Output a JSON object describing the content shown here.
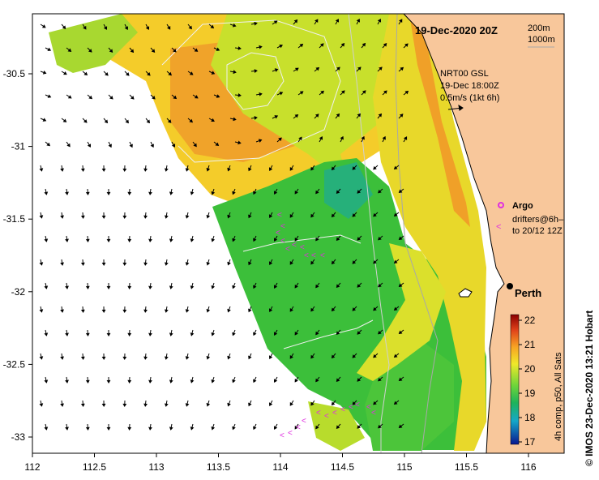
{
  "title": "19-Dec-2020 20Z",
  "depth_legend": [
    "200m",
    "1000m"
  ],
  "model_label": [
    "NRT00 GSL",
    "19-Dec 18:00Z",
    "0.5m/s (1kt 6h)"
  ],
  "legend": {
    "argo": "Argo",
    "drifters": [
      "drifters@6h–",
      "to 20/12 12Z"
    ]
  },
  "city": "Perth",
  "colorbar": {
    "label": "4h comp, p50, All Sats",
    "ticks": [
      "22",
      "21",
      "20",
      "19",
      "18",
      "17"
    ],
    "range": [
      17,
      22
    ]
  },
  "credit": "© IMOS 23-Dec-2020 13:21 Hobart",
  "x_axis": {
    "ticks": [
      "112",
      "112.5",
      "113",
      "113.5",
      "114",
      "114.5",
      "115",
      "115.5",
      "116"
    ]
  },
  "y_axis": {
    "ticks": [
      "-30.5",
      "-31",
      "-31.5",
      "-32",
      "-32.5",
      "-33"
    ]
  },
  "colors": {
    "land": "#f8c79b",
    "drifter": "#e030e0",
    "argo": "#e030e0",
    "frame": "#000000"
  }
}
